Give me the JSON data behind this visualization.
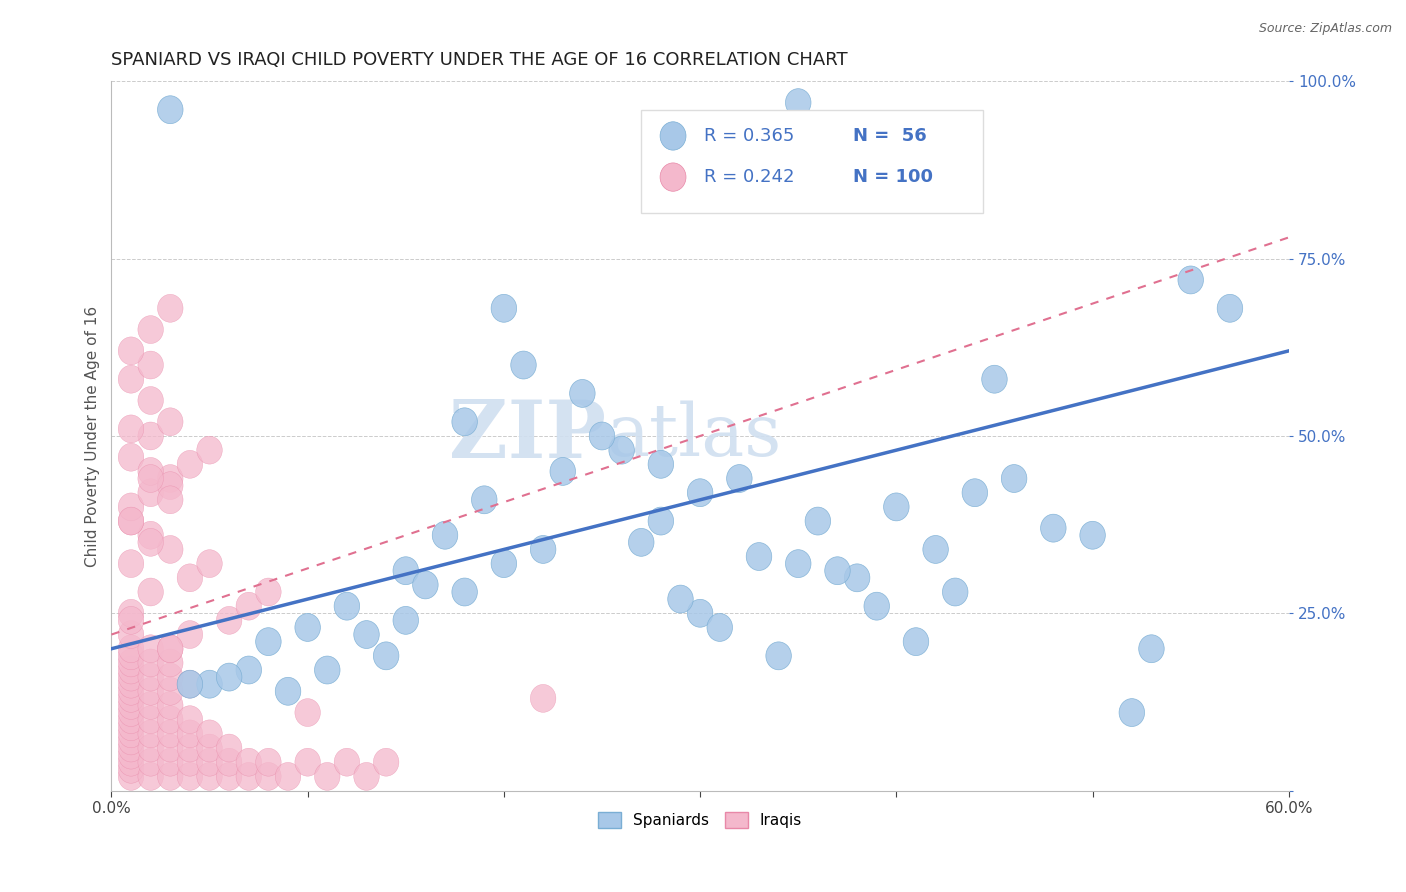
{
  "title": "SPANIARD VS IRAQI CHILD POVERTY UNDER THE AGE OF 16 CORRELATION CHART",
  "source": "Source: ZipAtlas.com",
  "ylabel": "Child Poverty Under the Age of 16",
  "xlim": [
    0.0,
    0.6
  ],
  "ylim": [
    0.0,
    1.0
  ],
  "xtick_labels": [
    "0.0%",
    "",
    "",
    "",
    "",
    "",
    "60.0%"
  ],
  "ytick_labels": [
    "",
    "25.0%",
    "50.0%",
    "75.0%",
    "100.0%"
  ],
  "blue_color": "#a8c8e8",
  "blue_edge_color": "#7aaed4",
  "pink_color": "#f4b8cc",
  "pink_edge_color": "#e888a8",
  "blue_line_color": "#4472c4",
  "pink_line_color": "#e07090",
  "watermark_color": "#d0dff0",
  "title_fontsize": 13,
  "blue_scatter_x": [
    0.35,
    0.2,
    0.21,
    0.18,
    0.26,
    0.3,
    0.24,
    0.32,
    0.15,
    0.17,
    0.22,
    0.28,
    0.35,
    0.38,
    0.42,
    0.45,
    0.1,
    0.12,
    0.16,
    0.2,
    0.3,
    0.33,
    0.36,
    0.05,
    0.07,
    0.09,
    0.13,
    0.18,
    0.5,
    0.55,
    0.44,
    0.29,
    0.34,
    0.37,
    0.41,
    0.52,
    0.23,
    0.43,
    0.46,
    0.03,
    0.27,
    0.4,
    0.48,
    0.25,
    0.31,
    0.39,
    0.19,
    0.14,
    0.08,
    0.11,
    0.15,
    0.06,
    0.28,
    0.57,
    0.53,
    0.04
  ],
  "blue_scatter_y": [
    0.97,
    0.68,
    0.6,
    0.52,
    0.48,
    0.42,
    0.56,
    0.44,
    0.31,
    0.36,
    0.34,
    0.38,
    0.32,
    0.3,
    0.34,
    0.58,
    0.23,
    0.26,
    0.29,
    0.32,
    0.25,
    0.33,
    0.38,
    0.15,
    0.17,
    0.14,
    0.22,
    0.28,
    0.36,
    0.72,
    0.42,
    0.27,
    0.19,
    0.31,
    0.21,
    0.11,
    0.45,
    0.28,
    0.44,
    0.96,
    0.35,
    0.4,
    0.37,
    0.5,
    0.23,
    0.26,
    0.41,
    0.19,
    0.21,
    0.17,
    0.24,
    0.16,
    0.46,
    0.68,
    0.2,
    0.15
  ],
  "pink_scatter_x": [
    0.01,
    0.01,
    0.01,
    0.01,
    0.01,
    0.01,
    0.01,
    0.01,
    0.01,
    0.01,
    0.01,
    0.01,
    0.01,
    0.01,
    0.01,
    0.01,
    0.01,
    0.01,
    0.01,
    0.01,
    0.02,
    0.02,
    0.02,
    0.02,
    0.02,
    0.02,
    0.02,
    0.02,
    0.02,
    0.02,
    0.03,
    0.03,
    0.03,
    0.03,
    0.03,
    0.03,
    0.03,
    0.03,
    0.03,
    0.03,
    0.04,
    0.04,
    0.04,
    0.04,
    0.04,
    0.05,
    0.05,
    0.05,
    0.05,
    0.06,
    0.06,
    0.06,
    0.07,
    0.07,
    0.08,
    0.08,
    0.09,
    0.1,
    0.11,
    0.12,
    0.13,
    0.14,
    0.06,
    0.07,
    0.08,
    0.04,
    0.05,
    0.03,
    0.02,
    0.01,
    0.01,
    0.02,
    0.03,
    0.04,
    0.05,
    0.02,
    0.03,
    0.04,
    0.22,
    0.1,
    0.01,
    0.02,
    0.03,
    0.01,
    0.02,
    0.01,
    0.02,
    0.01,
    0.02,
    0.03,
    0.01,
    0.02,
    0.01,
    0.02,
    0.01,
    0.03,
    0.02,
    0.04,
    0.01,
    0.03
  ],
  "pink_scatter_y": [
    0.02,
    0.03,
    0.04,
    0.05,
    0.06,
    0.07,
    0.08,
    0.09,
    0.1,
    0.11,
    0.12,
    0.13,
    0.14,
    0.15,
    0.16,
    0.17,
    0.18,
    0.19,
    0.2,
    0.22,
    0.02,
    0.04,
    0.06,
    0.08,
    0.1,
    0.12,
    0.14,
    0.16,
    0.18,
    0.2,
    0.02,
    0.04,
    0.06,
    0.08,
    0.1,
    0.12,
    0.14,
    0.16,
    0.18,
    0.2,
    0.02,
    0.04,
    0.06,
    0.08,
    0.1,
    0.02,
    0.04,
    0.06,
    0.08,
    0.02,
    0.04,
    0.06,
    0.02,
    0.04,
    0.02,
    0.04,
    0.02,
    0.04,
    0.02,
    0.04,
    0.02,
    0.04,
    0.24,
    0.26,
    0.28,
    0.3,
    0.32,
    0.34,
    0.36,
    0.38,
    0.4,
    0.42,
    0.44,
    0.46,
    0.48,
    0.5,
    0.52,
    0.15,
    0.13,
    0.11,
    0.47,
    0.45,
    0.43,
    0.51,
    0.55,
    0.58,
    0.6,
    0.62,
    0.65,
    0.68,
    0.25,
    0.28,
    0.32,
    0.35,
    0.38,
    0.41,
    0.44,
    0.22,
    0.24,
    0.2
  ]
}
